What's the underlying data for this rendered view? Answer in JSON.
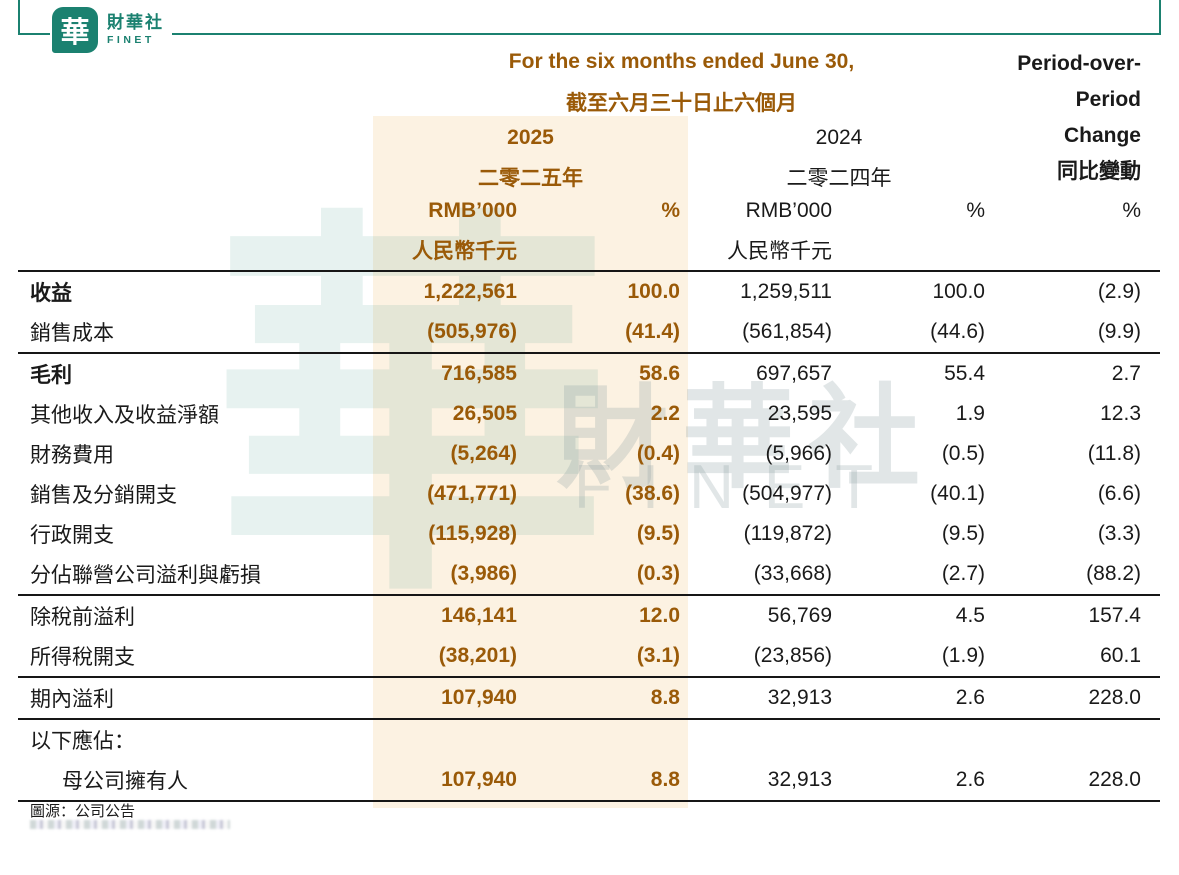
{
  "brand": {
    "tile_glyph": "華",
    "name_zh": "財華社",
    "name_en": "FINET"
  },
  "header": {
    "period_en": "For the six months ended June 30,",
    "period_zh": "截至六月三十日止六個月",
    "change_lines": [
      "Period-over-",
      "Period",
      "Change",
      "同比變動"
    ],
    "y2025": {
      "year": "2025",
      "year_zh": "二零二五年",
      "unit": "RMB’000",
      "unit_zh": "人民幣千元",
      "pct": "%"
    },
    "y2024": {
      "year": "2024",
      "year_zh": "二零二四年",
      "unit": "RMB’000",
      "unit_zh": "人民幣千元",
      "pct": "%"
    },
    "change_pct": "%"
  },
  "watermark": {
    "glyph": "華",
    "text_zh": "財華社",
    "text_en": "FINET"
  },
  "table": {
    "sections": [
      {
        "rows": [
          {
            "label": "收益",
            "bold": true,
            "v2025": "1,222,561",
            "p2025": "100.0",
            "v2024": "1,259,511",
            "p2024": "100.0",
            "chg": "(2.9)"
          },
          {
            "label": "銷售成本",
            "bold": false,
            "v2025": "(505,976)",
            "p2025": "(41.4)",
            "v2024": "(561,854)",
            "p2024": "(44.6)",
            "chg": "(9.9)"
          }
        ]
      },
      {
        "rows": [
          {
            "label": "毛利",
            "bold": true,
            "v2025": "716,585",
            "p2025": "58.6",
            "v2024": "697,657",
            "p2024": "55.4",
            "chg": "2.7"
          },
          {
            "label": "其他收入及收益淨額",
            "bold": false,
            "v2025": "26,505",
            "p2025": "2.2",
            "v2024": "23,595",
            "p2024": "1.9",
            "chg": "12.3"
          },
          {
            "label": "財務費用",
            "bold": false,
            "v2025": "(5,264)",
            "p2025": "(0.4)",
            "v2024": "(5,966)",
            "p2024": "(0.5)",
            "chg": "(11.8)"
          },
          {
            "label": "銷售及分銷開支",
            "bold": false,
            "v2025": "(471,771)",
            "p2025": "(38.6)",
            "v2024": "(504,977)",
            "p2024": "(40.1)",
            "chg": "(6.6)"
          },
          {
            "label": "行政開支",
            "bold": false,
            "v2025": "(115,928)",
            "p2025": "(9.5)",
            "v2024": "(119,872)",
            "p2024": "(9.5)",
            "chg": "(3.3)"
          },
          {
            "label": "分佔聯營公司溢利與虧損",
            "bold": false,
            "v2025": "(3,986)",
            "p2025": "(0.3)",
            "v2024": "(33,668)",
            "p2024": "(2.7)",
            "chg": "(88.2)"
          }
        ]
      },
      {
        "rows": [
          {
            "label": "除稅前溢利",
            "bold": false,
            "v2025": "146,141",
            "p2025": "12.0",
            "v2024": "56,769",
            "p2024": "4.5",
            "chg": "157.4"
          },
          {
            "label": "所得稅開支",
            "bold": false,
            "v2025": "(38,201)",
            "p2025": "(3.1)",
            "v2024": "(23,856)",
            "p2024": "(1.9)",
            "chg": "60.1"
          }
        ]
      },
      {
        "rows": [
          {
            "label": "期內溢利",
            "bold": false,
            "v2025": "107,940",
            "p2025": "8.8",
            "v2024": "32,913",
            "p2024": "2.6",
            "chg": "228.0"
          }
        ]
      },
      {
        "rows": [
          {
            "label": "以下應佔：",
            "bold": false,
            "v2025": "",
            "p2025": "",
            "v2024": "",
            "p2024": "",
            "chg": ""
          },
          {
            "label": "母公司擁有人",
            "bold": false,
            "indent": true,
            "v2025": "107,940",
            "p2025": "8.8",
            "v2024": "32,913",
            "p2024": "2.6",
            "chg": "228.0"
          }
        ]
      }
    ]
  },
  "footer": {
    "source": "圖源：公司公告"
  },
  "colors": {
    "accent_brown": "#9a5a08",
    "brand_green": "#1b8170",
    "highlight_bg": "#fcf2e2",
    "rule": "#161616"
  }
}
